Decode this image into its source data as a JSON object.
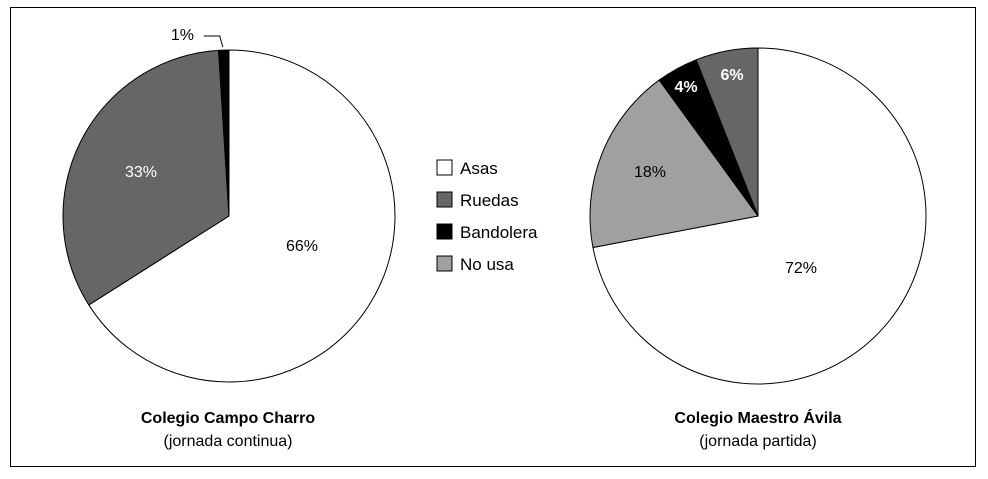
{
  "chart_data": {
    "type": "pie",
    "legend": {
      "placement": "center",
      "entries": [
        {
          "key": "asas",
          "label": "Asas",
          "color": "#ffffff"
        },
        {
          "key": "ruedas",
          "label": "Ruedas",
          "color": "#666666"
        },
        {
          "key": "bandolera",
          "label": "Bandolera",
          "color": "#000000"
        },
        {
          "key": "no_usa",
          "label": "No usa",
          "color": "#a0a0a0"
        }
      ]
    },
    "charts": [
      {
        "id": "campo-charro",
        "title": "Colegio Campo Charro",
        "subtitle": "(jornada continua)",
        "slices": [
          {
            "key": "asas",
            "label": "66%",
            "value": 66
          },
          {
            "key": "ruedas",
            "label": "33%",
            "value": 33
          },
          {
            "key": "bandolera",
            "label": "1%",
            "value": 1
          }
        ]
      },
      {
        "id": "maestro-avila",
        "title": "Colegio Maestro Ávila",
        "subtitle": "(jornada partida)",
        "slices": [
          {
            "key": "asas",
            "label": "72%",
            "value": 72
          },
          {
            "key": "no_usa",
            "label": "18%",
            "value": 18
          },
          {
            "key": "bandolera",
            "label": "4%",
            "value": 4
          },
          {
            "key": "ruedas",
            "label": "6%",
            "value": 6
          }
        ]
      }
    ]
  }
}
